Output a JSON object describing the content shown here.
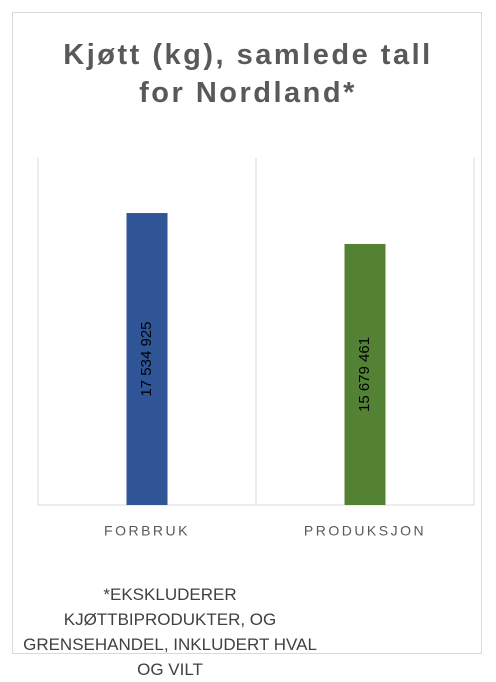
{
  "chart_data": {
    "type": "bar",
    "title": "Kjøtt (kg), samlede tall for Nordland*",
    "categories": [
      "FORBRUK",
      "PRODUKSJON"
    ],
    "values": [
      17534925,
      15679461
    ],
    "value_labels": [
      "17 534 925",
      "15 679 461"
    ],
    "colors": [
      "#2f5597",
      "#548235"
    ],
    "ylim": [
      0,
      20000000
    ],
    "grid": true,
    "annotation": "*EKSKLUDERER KJØTTBIPRODUKTER, OG GRENSEHANDEL, INKLUDERT HVAL OG VILT"
  }
}
